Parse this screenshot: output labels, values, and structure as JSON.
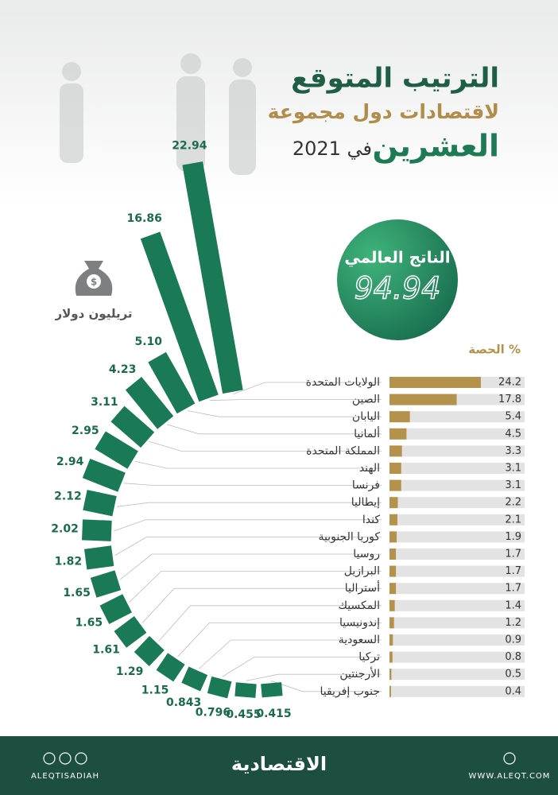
{
  "header": {
    "title_line1": "الترتيب المتوقع",
    "title_line2": "لاقتصادات دول مجموعة",
    "title_line3": "العشرين",
    "title_year": "في 2021"
  },
  "callout": {
    "label": "الناتج العالمي",
    "value": 94.94
  },
  "chart_data": [
    {
      "type": "radial_bar",
      "unit_label": "تريليون دولار",
      "color": "#1a7a55",
      "values": [
        22.94,
        16.86,
        5.1,
        4.23,
        3.11,
        2.95,
        2.94,
        2.12,
        2.02,
        1.82,
        1.65,
        1.65,
        1.61,
        1.29,
        1.15,
        0.843,
        0.796,
        0.455,
        0.415
      ],
      "value_labels": [
        "22.94",
        "16.86",
        "5.10",
        "4.23",
        "3.11",
        "2.95",
        "2.94",
        "2.12",
        "2.02",
        "1.82",
        "1.65",
        "1.65",
        "1.61",
        "1.29",
        "1.15",
        "0.843",
        "0.796",
        "0.455",
        "0.415"
      ]
    },
    {
      "type": "bar",
      "title": "الحصة %",
      "color": "#b5924c",
      "categories": [
        "الولايات المتحدة",
        "الصين",
        "اليابان",
        "ألمانيا",
        "المملكة المتحدة",
        "الهند",
        "فرنسا",
        "إيطاليا",
        "كندا",
        "كوريا الجنوبية",
        "روسيا",
        "البرازيل",
        "أستراليا",
        "المكسيك",
        "إندونيسيا",
        "السعودية",
        "تركيا",
        "الأرجنتين",
        "جنوب إفريقيا"
      ],
      "values": [
        24.2,
        17.8,
        5.4,
        4.5,
        3.3,
        3.1,
        3.1,
        2.2,
        2.1,
        1.9,
        1.7,
        1.7,
        1.7,
        1.4,
        1.2,
        0.9,
        0.8,
        0.5,
        0.4
      ]
    }
  ],
  "footer": {
    "social": "ALEQTISADIAH",
    "brand": "الاقتصادية",
    "website": "WWW.ALEQT.COM"
  }
}
